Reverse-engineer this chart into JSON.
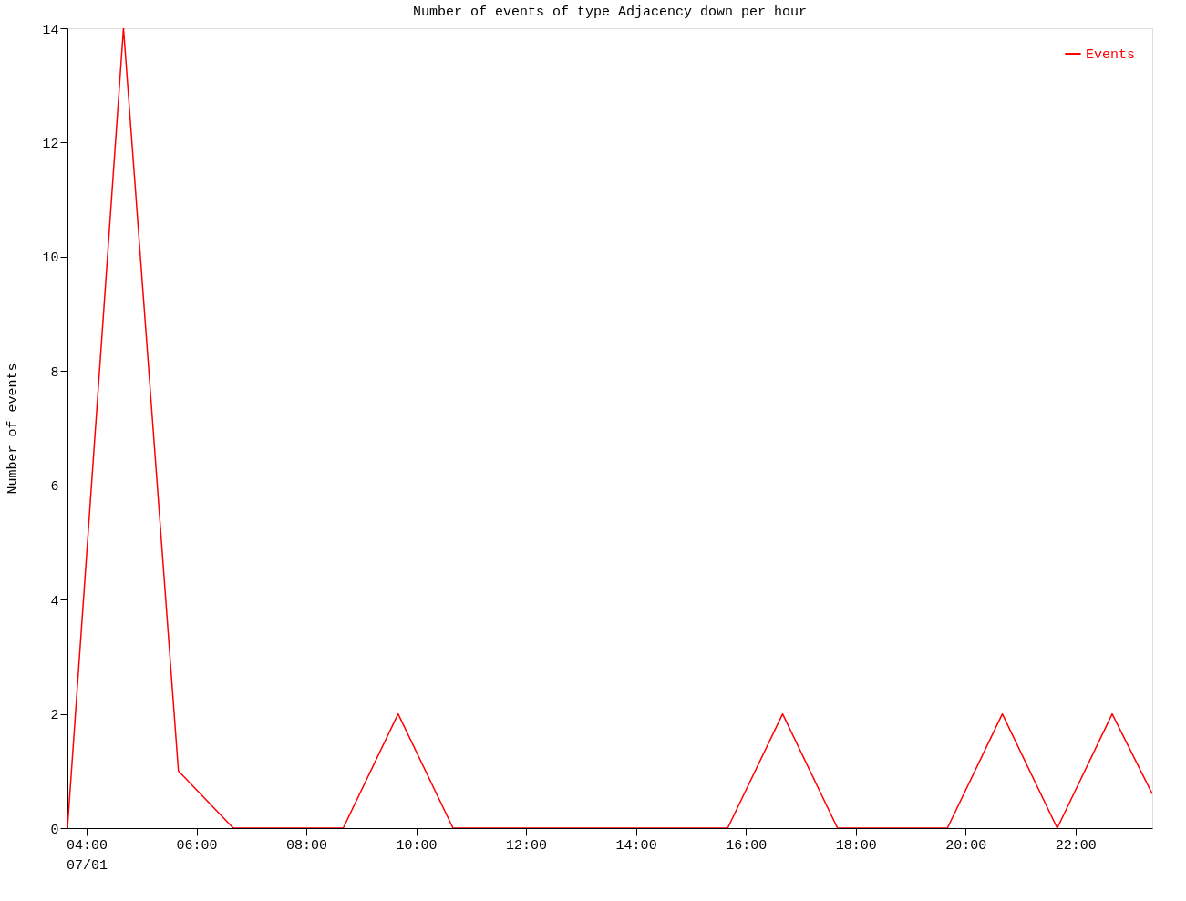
{
  "chart_data": {
    "type": "line",
    "title": "Number of events of type Adjacency down per hour",
    "ylabel": "Number of events",
    "x": [
      3.65,
      4.67,
      5.67,
      6.67,
      7.67,
      8.67,
      9.67,
      10.67,
      11.67,
      12.67,
      13.67,
      14.67,
      15.67,
      16.67,
      17.67,
      18.67,
      19.67,
      20.67,
      21.67,
      22.67,
      23.4
    ],
    "series": [
      {
        "name": "Events",
        "color": "#ff0000",
        "values": [
          0,
          14,
          1,
          0,
          0,
          0,
          2,
          0,
          0,
          0,
          0,
          0,
          0,
          2,
          0,
          0,
          0,
          2,
          0,
          2,
          0.6
        ]
      }
    ],
    "xlim": [
      3.65,
      23.4
    ],
    "xticks": [
      {
        "value": 4,
        "label": "04:00\n07/01"
      },
      {
        "value": 6,
        "label": "06:00"
      },
      {
        "value": 8,
        "label": "08:00"
      },
      {
        "value": 10,
        "label": "10:00"
      },
      {
        "value": 12,
        "label": "12:00"
      },
      {
        "value": 14,
        "label": "14:00"
      },
      {
        "value": 16,
        "label": "16:00"
      },
      {
        "value": 18,
        "label": "18:00"
      },
      {
        "value": 20,
        "label": "20:00"
      },
      {
        "value": 22,
        "label": "22:00"
      }
    ],
    "ylim": [
      0,
      14
    ],
    "yticks": [
      0,
      2,
      4,
      6,
      8,
      10,
      12,
      14
    ],
    "grid": false,
    "legend": "top right",
    "marker": "none",
    "line_style": "solid"
  }
}
